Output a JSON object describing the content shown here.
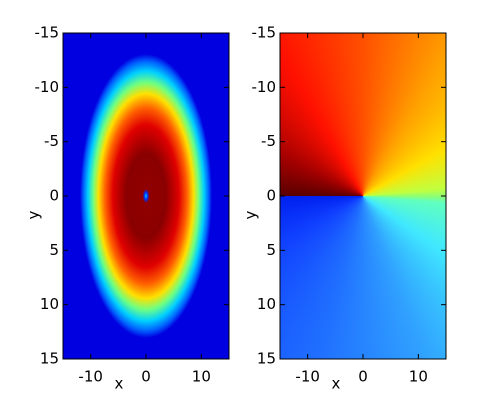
{
  "chart_data": [
    {
      "type": "heatmap",
      "xlabel": "x",
      "ylabel": "y",
      "xlim": [
        -15,
        15
      ],
      "ylim": [
        -15,
        15
      ],
      "y_reversed": true,
      "xticks": [
        -10,
        0,
        10
      ],
      "yticks": [
        -15,
        -10,
        -5,
        0,
        5,
        10,
        15
      ]
    },
    {
      "type": "heatmap",
      "xlabel": "x",
      "ylabel": "y",
      "xlim": [
        -15,
        15
      ],
      "ylim": [
        -15,
        15
      ],
      "y_reversed": true,
      "xticks": [
        -10,
        0,
        10
      ],
      "yticks": [
        -15,
        -10,
        -5,
        0,
        5,
        10,
        15
      ]
    }
  ]
}
